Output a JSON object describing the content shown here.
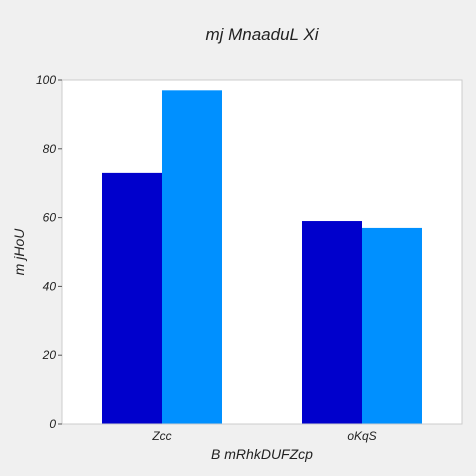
{
  "chart_data": {
    "type": "bar",
    "title": "mj MnaaduL Xi",
    "xlabel": "B mRhkDUFZcp",
    "ylabel": "m jHoU",
    "categories": [
      "Zcc",
      "oKqS"
    ],
    "series": [
      {
        "values": [
          73,
          59
        ]
      },
      {
        "values": [
          97,
          57
        ]
      }
    ],
    "ylim": [
      0,
      100
    ],
    "yticks": [
      0,
      20,
      40,
      60,
      80,
      100
    ],
    "grid": false,
    "legend": false
  },
  "colors": {
    "series": [
      "#0000cc",
      "#0090ff"
    ],
    "plot_background": "#ffffff",
    "page_background": "#f0f0f0",
    "axis_border": "#cccccc"
  }
}
